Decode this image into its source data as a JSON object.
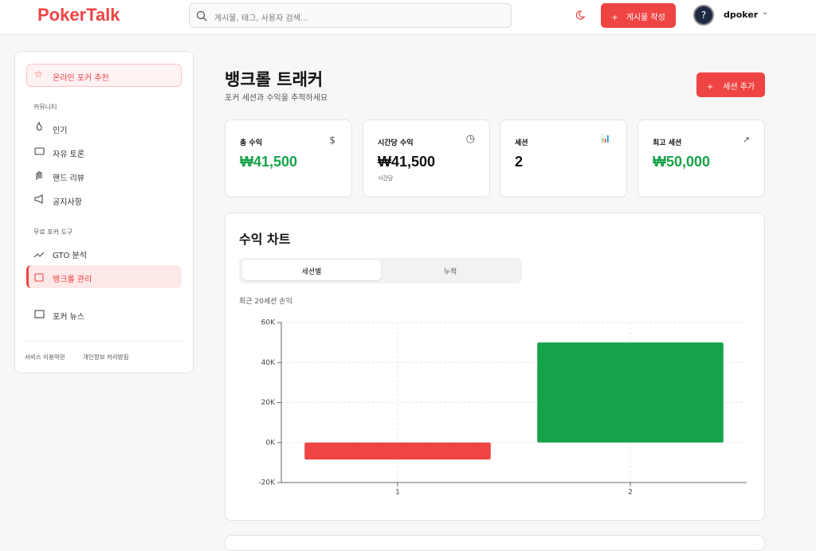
{
  "header": {
    "logo": "PokerTalk",
    "search_placeholder": "게시물, 태그, 사용자 검색...",
    "write_button": "게시물 작성",
    "username": "dpoker"
  },
  "sidebar": {
    "featured": "온라인 포커 추천",
    "sections": [
      {
        "title": "커뮤니티",
        "items": [
          "인기",
          "자유 토론",
          "핸드 리뷰",
          "공지사항"
        ]
      },
      {
        "title": "무료 포커 도구",
        "items": [
          "GTO 분석",
          "뱅크롤 관리"
        ]
      }
    ],
    "news": "포커 뉴스",
    "footer_links": [
      "서비스 이용약관",
      "개인정보 처리방침"
    ]
  },
  "main": {
    "title": "뱅크롤 트래커",
    "subtitle": "포커 세션과 수익을 추적하세요",
    "add_button": "세션 추가",
    "stats": [
      {
        "label": "총 수익",
        "value": "₩41,500"
      },
      {
        "label": "시간당 수익",
        "value": "₩41,500",
        "note": "시간당"
      },
      {
        "label": "세션",
        "value": "2"
      },
      {
        "label": "최고 세션",
        "value": "₩50,000"
      }
    ],
    "chart_card": {
      "title": "수익 차트",
      "tabs": [
        "세션별",
        "누적"
      ],
      "caption": "최근 20세션 손익"
    }
  },
  "chart_data": {
    "type": "bar",
    "categories": [
      "1",
      "2"
    ],
    "values": [
      -8500,
      50000
    ],
    "colors": [
      "#ef4444",
      "#16a34a"
    ],
    "ylim": [
      -20000,
      60000
    ],
    "yticks": [
      {
        "value": -20000,
        "label": "-20K"
      },
      {
        "value": 0,
        "label": "0K"
      },
      {
        "value": 20000,
        "label": "20K"
      },
      {
        "value": 40000,
        "label": "40K"
      },
      {
        "value": 60000,
        "label": "60K"
      }
    ],
    "grid": true
  }
}
